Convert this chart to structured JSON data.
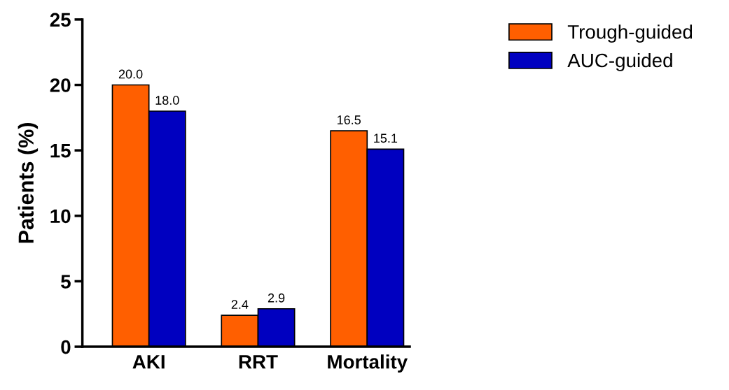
{
  "chart_data": {
    "type": "bar",
    "ylabel": "Patients (%)",
    "categories": [
      "AKI",
      "RRT",
      "Mortality"
    ],
    "series": [
      {
        "name": "Trough-guided",
        "color": "#ff5f00",
        "values": [
          20.0,
          2.4,
          16.5
        ],
        "value_labels": [
          "20.0",
          "2.4",
          "16.5"
        ]
      },
      {
        "name": "AUC-guided",
        "color": "#0000c0",
        "values": [
          18.0,
          2.9,
          15.1
        ],
        "value_labels": [
          "18.0",
          "2.9",
          "15.1"
        ]
      }
    ],
    "ylim": [
      0,
      25
    ],
    "yticks": [
      0,
      5,
      10,
      15,
      20,
      25
    ],
    "grid": false,
    "legend": "top right"
  }
}
